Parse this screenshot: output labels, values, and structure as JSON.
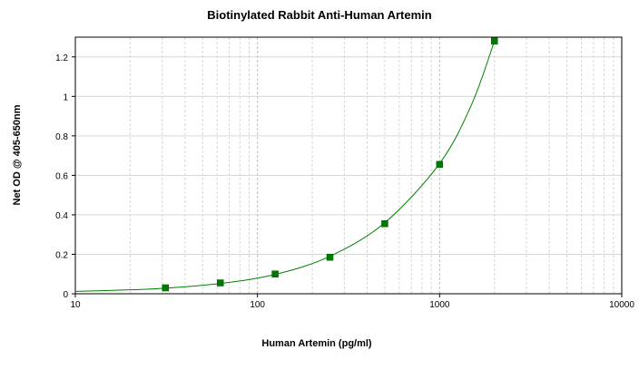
{
  "chart_data": {
    "type": "scatter",
    "title": "Biotinylated Rabbit Anti-Human Artemin",
    "xlabel": "Human Artemin (pg/ml)",
    "ylabel": "Net OD @ 405-650nm",
    "x_scale": "log",
    "xlim": [
      10,
      10000
    ],
    "ylim": [
      0,
      1.3
    ],
    "x_ticks": [
      {
        "value": 10,
        "label": "10"
      },
      {
        "value": 100,
        "label": "100"
      },
      {
        "value": 1000,
        "label": "1000"
      },
      {
        "value": 10000,
        "label": "10000"
      }
    ],
    "y_ticks": [
      {
        "value": 0,
        "label": "0"
      },
      {
        "value": 0.2,
        "label": "0.2"
      },
      {
        "value": 0.4,
        "label": "0.4"
      },
      {
        "value": 0.6,
        "label": "0.6"
      },
      {
        "value": 0.8,
        "label": "0.8"
      },
      {
        "value": 1,
        "label": "1"
      },
      {
        "value": 1.2,
        "label": "1.2"
      }
    ],
    "grid": true,
    "points": [
      {
        "x": 31.25,
        "y": 0.03
      },
      {
        "x": 62.5,
        "y": 0.055
      },
      {
        "x": 125,
        "y": 0.1
      },
      {
        "x": 250,
        "y": 0.185
      },
      {
        "x": 500,
        "y": 0.355
      },
      {
        "x": 1000,
        "y": 0.655
      },
      {
        "x": 2000,
        "y": 1.28
      }
    ],
    "fit_curve": {
      "type": "smooth",
      "x": [
        10,
        20,
        31.25,
        62.5,
        125,
        250,
        500,
        1000,
        1500,
        2000
      ],
      "y": [
        0.012,
        0.02,
        0.028,
        0.052,
        0.098,
        0.19,
        0.36,
        0.66,
        0.96,
        1.28
      ]
    },
    "colors": {
      "series": "#008000",
      "marker": "#007a00",
      "grid": "#d6d6d6",
      "axis": "#000000"
    }
  }
}
